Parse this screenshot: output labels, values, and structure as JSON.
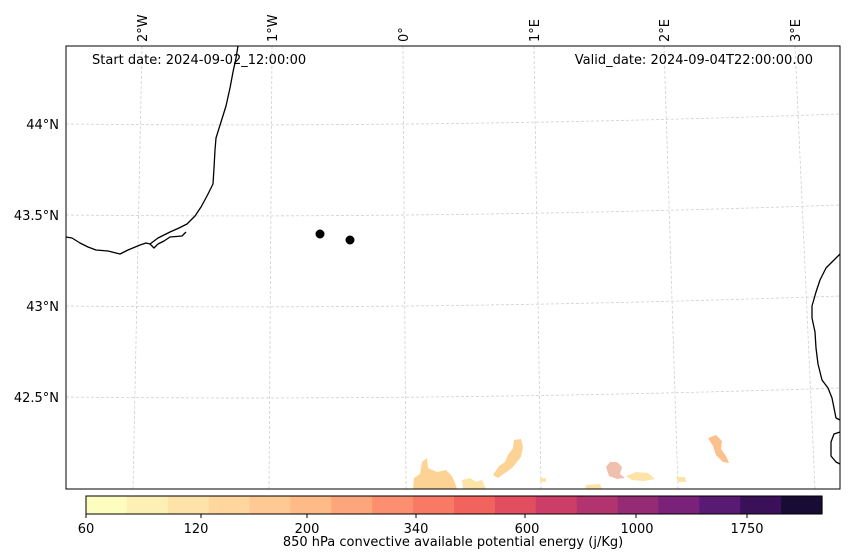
{
  "header": {
    "start_date": "Start date: 2024-09-02_12:00:00",
    "valid_date": "Valid_date: 2024-09-04T22:00:00.00"
  },
  "axes": {
    "lon_labels": [
      "2°W",
      "1°W",
      "0°",
      "1°E",
      "2°E",
      "3°E"
    ],
    "lat_labels": [
      "44°N",
      "43.5°N",
      "43°N",
      "42.5°N"
    ]
  },
  "markers": [
    {
      "name": "point-a",
      "color": "#000000"
    },
    {
      "name": "point-b",
      "color": "#000000"
    }
  ],
  "colorbar": {
    "title": "850 hPa convective available potential energy (j/Kg)",
    "tick_labels": [
      "60",
      "120",
      "200",
      "340",
      "600",
      "1000",
      "1750"
    ],
    "colors": [
      "#fcfdbf",
      "#fdf0b4",
      "#fee3a9",
      "#fed69e",
      "#fec993",
      "#febb87",
      "#fda57b",
      "#fc8f6f",
      "#f87a64",
      "#f1635c",
      "#e24e5f",
      "#cc3e68",
      "#b2346f",
      "#962b75",
      "#7a2179",
      "#581a73",
      "#3a1058",
      "#180b34"
    ]
  },
  "cape_colors": {
    "light": "#fde4a6",
    "mid": "#fdd395",
    "warm": "#fcc08c",
    "pink": "#f0bfae",
    "purple": "#d6a0c8"
  }
}
